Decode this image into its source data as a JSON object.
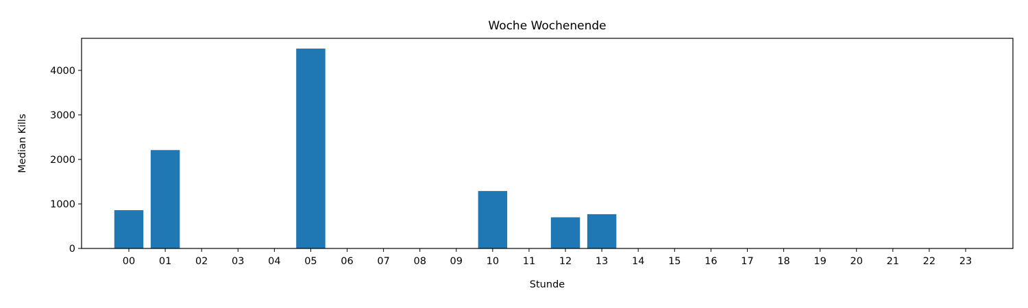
{
  "chart_data": {
    "type": "bar",
    "title": "Woche Wochenende",
    "xlabel": "Stunde",
    "ylabel": "Median Kills",
    "categories": [
      "00",
      "01",
      "02",
      "03",
      "04",
      "05",
      "06",
      "07",
      "08",
      "09",
      "10",
      "11",
      "12",
      "13",
      "14",
      "15",
      "16",
      "17",
      "18",
      "19",
      "20",
      "21",
      "22",
      "23"
    ],
    "values": [
      860,
      2210,
      0,
      0,
      0,
      4490,
      0,
      0,
      0,
      0,
      1290,
      0,
      700,
      770,
      0,
      0,
      0,
      0,
      0,
      0,
      0,
      0,
      0,
      0
    ],
    "ylim": [
      0,
      4720
    ],
    "yticks": [
      0,
      1000,
      2000,
      3000,
      4000
    ],
    "color": "#1f77b4",
    "grid": false,
    "legend": "none"
  }
}
